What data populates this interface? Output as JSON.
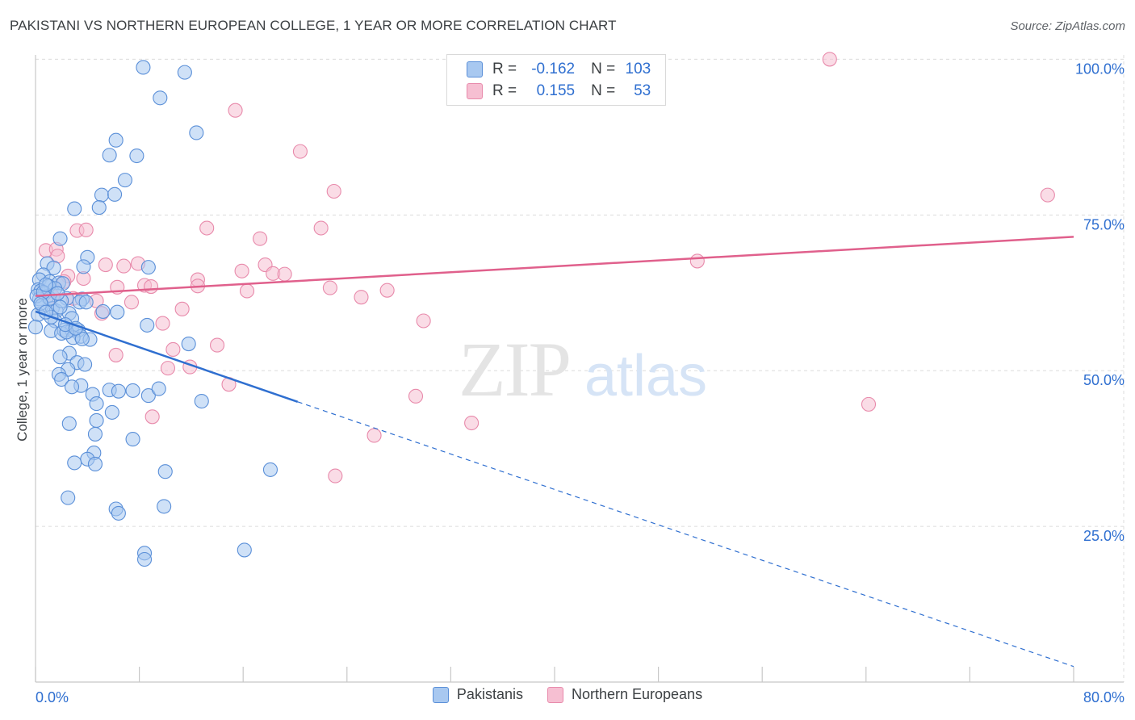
{
  "header": {
    "title": "PAKISTANI VS NORTHERN EUROPEAN COLLEGE, 1 YEAR OR MORE CORRELATION CHART",
    "source": "Source: ZipAtlas.com"
  },
  "watermark": {
    "zip": "ZIP",
    "atlas": "atlas"
  },
  "stats_legend": {
    "r_label": "R =",
    "n_label": "N =",
    "rows": [
      {
        "series": "Pakistanis",
        "r": "-0.162",
        "n": "103"
      },
      {
        "series": "Northern Europeans",
        "r": "0.155",
        "n": "53"
      }
    ]
  },
  "colors": {
    "pakistanis_fill": "#a8c8f0",
    "pakistanis_stroke": "#5a8fd8",
    "pakistanis_line": "#2f6fd0",
    "northern_fill": "#f6bfd2",
    "northern_stroke": "#e88aab",
    "northern_line": "#e0608c",
    "tick_label": "#2f6fd0",
    "grid": "#dcdcdc"
  },
  "chart_data": {
    "type": "scatter",
    "title": "PAKISTANI VS NORTHERN EUROPEAN COLLEGE, 1 YEAR OR MORE CORRELATION CHART",
    "xlabel": "",
    "ylabel": "College, 1 year or more",
    "xlim": [
      0,
      80
    ],
    "ylim": [
      0,
      102
    ],
    "x_tick_labels": [
      "0.0%",
      "80.0%"
    ],
    "y_ticks": [
      25,
      50,
      75,
      100
    ],
    "y_tick_labels": [
      "25.0%",
      "50.0%",
      "75.0%",
      "100.0%"
    ],
    "grid": true,
    "legend_position": "bottom",
    "series": [
      {
        "name": "Pakistanis",
        "trend": {
          "x": [
            0,
            20.2
          ],
          "y": [
            59.5,
            45.0
          ],
          "extension": {
            "x": [
              20.2,
              80
            ],
            "y": [
              45.0,
              2.5
            ]
          }
        },
        "points": [
          [
            8.3,
            98.7
          ],
          [
            11.5,
            97.9
          ],
          [
            9.6,
            93.8
          ],
          [
            12.4,
            88.2
          ],
          [
            6.2,
            87.0
          ],
          [
            5.7,
            84.6
          ],
          [
            7.8,
            84.5
          ],
          [
            6.9,
            80.6
          ],
          [
            5.1,
            78.2
          ],
          [
            6.1,
            78.3
          ],
          [
            4.9,
            76.2
          ],
          [
            3.0,
            76.0
          ],
          [
            1.9,
            71.2
          ],
          [
            4.0,
            68.2
          ],
          [
            0.9,
            67.2
          ],
          [
            3.7,
            66.7
          ],
          [
            8.7,
            66.6
          ],
          [
            1.4,
            66.5
          ],
          [
            0.6,
            65.4
          ],
          [
            0.3,
            64.6
          ],
          [
            1.1,
            64.3
          ],
          [
            1.8,
            64.1
          ],
          [
            2.1,
            64.0
          ],
          [
            1.0,
            63.6
          ],
          [
            0.2,
            63.0
          ],
          [
            0.4,
            62.8
          ],
          [
            0.7,
            62.4
          ],
          [
            0.9,
            61.9
          ],
          [
            0.3,
            61.5
          ],
          [
            0.1,
            62.0
          ],
          [
            2.4,
            61.6
          ],
          [
            3.6,
            61.5
          ],
          [
            3.4,
            61.0
          ],
          [
            3.9,
            61.0
          ],
          [
            0.5,
            60.5
          ],
          [
            1.3,
            60.0
          ],
          [
            1.6,
            59.6
          ],
          [
            5.2,
            59.5
          ],
          [
            6.3,
            59.4
          ],
          [
            0.2,
            59.0
          ],
          [
            2.6,
            59.2
          ],
          [
            2.8,
            58.4
          ],
          [
            1.5,
            58.0
          ],
          [
            0.0,
            57.0
          ],
          [
            8.6,
            57.3
          ],
          [
            1.2,
            56.4
          ],
          [
            2.2,
            56.5
          ],
          [
            2.8,
            56.5
          ],
          [
            3.3,
            56.5
          ],
          [
            2.0,
            56.0
          ],
          [
            3.5,
            55.5
          ],
          [
            2.9,
            55.3
          ],
          [
            4.2,
            55.0
          ],
          [
            3.6,
            55.1
          ],
          [
            11.8,
            54.3
          ],
          [
            2.6,
            52.8
          ],
          [
            1.9,
            52.2
          ],
          [
            3.2,
            51.3
          ],
          [
            3.8,
            51.0
          ],
          [
            2.5,
            50.2
          ],
          [
            1.8,
            49.4
          ],
          [
            2.0,
            48.6
          ],
          [
            3.5,
            47.6
          ],
          [
            2.8,
            47.4
          ],
          [
            5.7,
            46.9
          ],
          [
            6.4,
            46.7
          ],
          [
            7.5,
            46.8
          ],
          [
            4.4,
            46.2
          ],
          [
            8.7,
            46.0
          ],
          [
            9.5,
            47.1
          ],
          [
            4.7,
            44.7
          ],
          [
            12.8,
            45.1
          ],
          [
            5.9,
            43.3
          ],
          [
            4.7,
            42.0
          ],
          [
            2.6,
            41.5
          ],
          [
            4.6,
            39.8
          ],
          [
            7.5,
            39.0
          ],
          [
            4.5,
            36.8
          ],
          [
            4.0,
            35.8
          ],
          [
            3.0,
            35.2
          ],
          [
            4.6,
            35.0
          ],
          [
            10.0,
            33.8
          ],
          [
            18.1,
            34.1
          ],
          [
            2.5,
            29.6
          ],
          [
            6.2,
            27.8
          ],
          [
            6.4,
            27.1
          ],
          [
            9.9,
            28.2
          ],
          [
            8.4,
            20.7
          ],
          [
            8.4,
            19.7
          ],
          [
            16.1,
            21.2
          ],
          [
            2.4,
            56.2
          ],
          [
            1.1,
            61.6
          ],
          [
            0.6,
            62.6
          ],
          [
            1.5,
            63.2
          ],
          [
            0.8,
            63.8
          ],
          [
            2.0,
            61.2
          ],
          [
            1.7,
            62.4
          ],
          [
            0.4,
            60.8
          ],
          [
            2.3,
            57.4
          ],
          [
            1.2,
            58.6
          ],
          [
            3.1,
            56.8
          ],
          [
            0.8,
            59.4
          ],
          [
            1.9,
            60.2
          ]
        ]
      },
      {
        "name": "Northern Europeans",
        "trend": {
          "x": [
            0,
            80
          ],
          "y": [
            62.0,
            71.5
          ]
        },
        "points": [
          [
            61.2,
            100.0
          ],
          [
            15.4,
            91.8
          ],
          [
            20.4,
            85.2
          ],
          [
            23.0,
            78.8
          ],
          [
            78.0,
            78.2
          ],
          [
            3.2,
            72.5
          ],
          [
            3.9,
            72.6
          ],
          [
            13.2,
            72.9
          ],
          [
            22.0,
            72.9
          ],
          [
            17.3,
            71.2
          ],
          [
            0.8,
            69.3
          ],
          [
            1.6,
            69.5
          ],
          [
            1.7,
            68.4
          ],
          [
            5.4,
            67.0
          ],
          [
            7.9,
            67.2
          ],
          [
            17.7,
            67.0
          ],
          [
            6.8,
            66.8
          ],
          [
            15.9,
            66.0
          ],
          [
            18.3,
            65.6
          ],
          [
            19.2,
            65.5
          ],
          [
            51.0,
            67.6
          ],
          [
            2.5,
            65.2
          ],
          [
            3.7,
            64.8
          ],
          [
            12.5,
            64.6
          ],
          [
            2.2,
            64.3
          ],
          [
            8.4,
            63.7
          ],
          [
            8.9,
            63.5
          ],
          [
            6.3,
            63.4
          ],
          [
            12.5,
            63.6
          ],
          [
            22.7,
            63.3
          ],
          [
            16.3,
            62.8
          ],
          [
            27.1,
            62.9
          ],
          [
            25.1,
            61.8
          ],
          [
            1.3,
            62.0
          ],
          [
            4.7,
            61.2
          ],
          [
            11.3,
            59.9
          ],
          [
            5.1,
            59.2
          ],
          [
            29.9,
            58.0
          ],
          [
            9.8,
            57.6
          ],
          [
            10.6,
            53.4
          ],
          [
            14.0,
            54.1
          ],
          [
            6.2,
            52.5
          ],
          [
            10.2,
            50.4
          ],
          [
            11.9,
            50.6
          ],
          [
            14.9,
            47.8
          ],
          [
            29.3,
            45.9
          ],
          [
            64.2,
            44.6
          ],
          [
            9.0,
            42.6
          ],
          [
            33.6,
            41.6
          ],
          [
            26.1,
            39.6
          ],
          [
            23.1,
            33.1
          ],
          [
            2.9,
            61.6
          ],
          [
            7.4,
            61.0
          ]
        ]
      }
    ]
  },
  "bottom_legend": [
    "Pakistanis",
    "Northern Europeans"
  ]
}
